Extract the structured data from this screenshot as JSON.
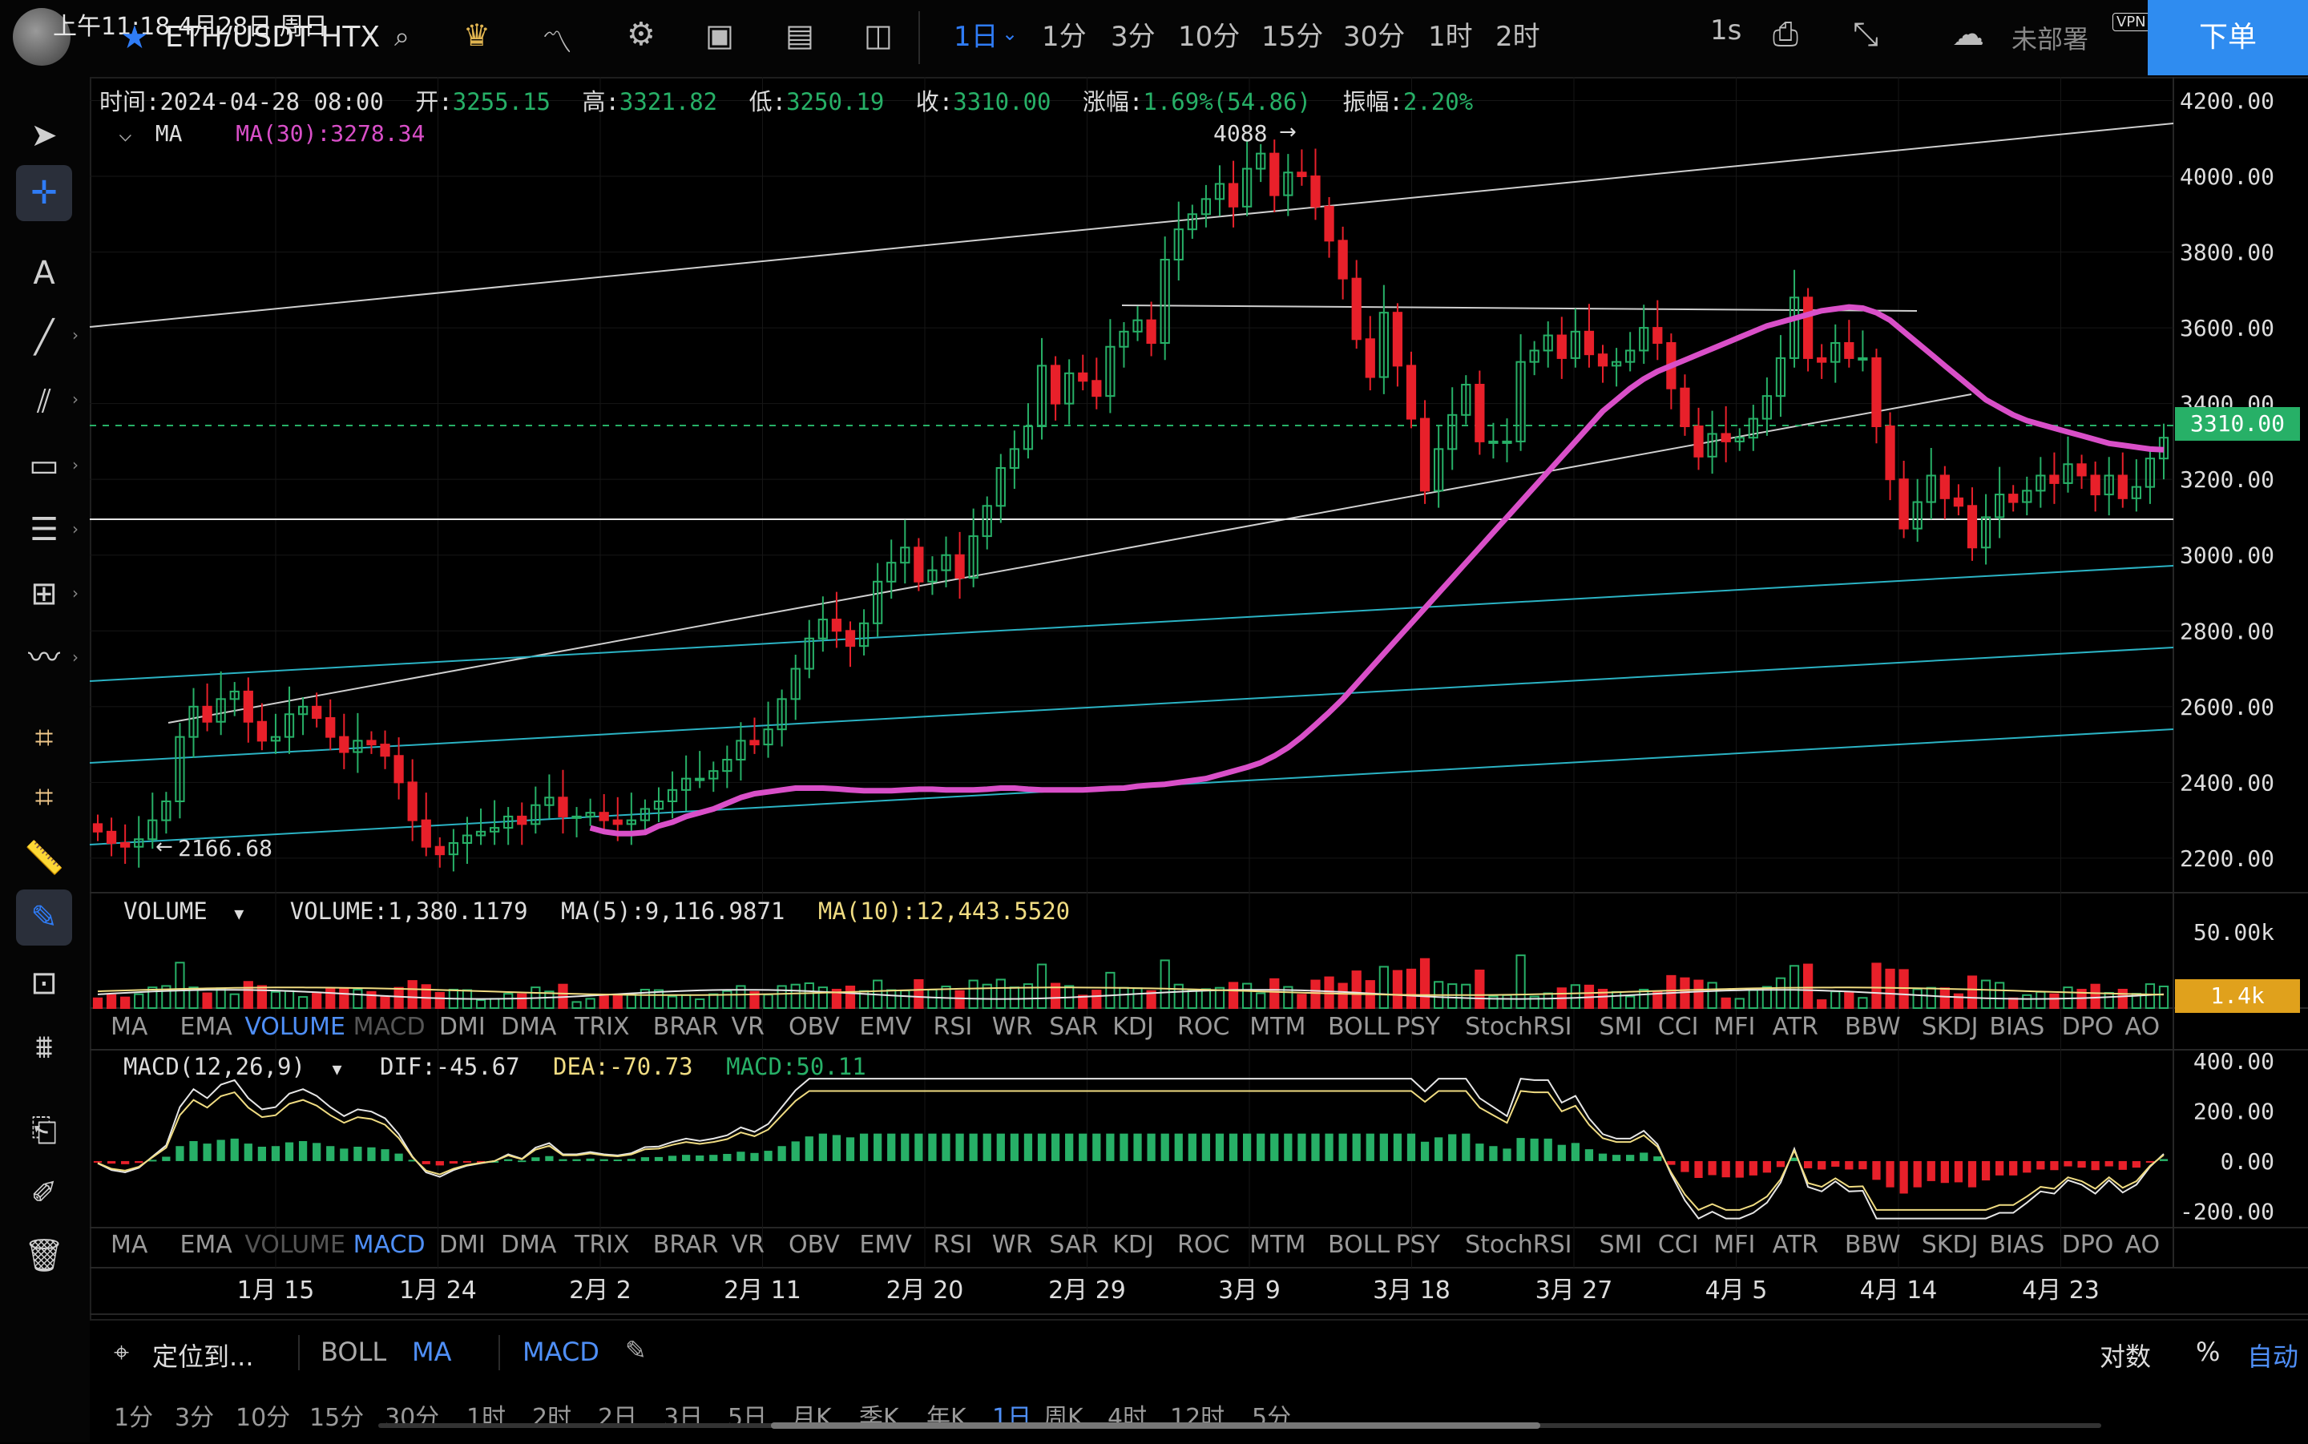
{
  "status": {
    "time": "上午11:18 4月28日 周日",
    "not_all": "未部署"
  },
  "header": {
    "symbol": "ETH/USDT HTX",
    "timeframes": [
      "1日",
      "1分",
      "3分",
      "10分",
      "15分",
      "30分",
      "1时",
      "2时"
    ],
    "active_timeframe": "1日",
    "interval_1s": "1s",
    "order_button": "下单"
  },
  "info": {
    "time_label": "时间:",
    "time": "2024-04-28 08:00",
    "open_label": "开:",
    "open": "3255.15",
    "high_label": "高:",
    "high": "3321.82",
    "low_label": "低:",
    "low": "3250.19",
    "close_label": "收:",
    "close": "3310.00",
    "change_label": "涨幅:",
    "change": "1.69%(54.86)",
    "amp_label": "振幅:",
    "amp": "2.20%",
    "ma_toggle": "MA",
    "ma30": "MA(30):3278.34"
  },
  "annotations": {
    "max_label": "4088",
    "min_label": "2166.68",
    "last_price": "3310.00",
    "vol_tag": "1.4k"
  },
  "volume_header": {
    "name": "VOLUME",
    "volume": "VOLUME:1,380.1179",
    "ma5": "MA(5):9,116.9871",
    "ma10": "MA(10):12,443.5520"
  },
  "macd_header": {
    "name": "MACD(12,26,9)",
    "dif": "DIF:-45.67",
    "dea": "DEA:-70.73",
    "macd": "MACD:50.11"
  },
  "indicator_tabs": [
    "MA",
    "EMA",
    "VOLUME",
    "MACD",
    "DMI",
    "DMA",
    "TRIX",
    "BRAR",
    "VR",
    "OBV",
    "EMV",
    "RSI",
    "WR",
    "SAR",
    "KDJ",
    "ROC",
    "MTM",
    "BOLL",
    "PSY",
    "StochRSI",
    "SMI",
    "CCI",
    "MFI",
    "ATR",
    "BBW",
    "SKDJ",
    "BIAS",
    "DPO",
    "AO"
  ],
  "bottom": {
    "locate": "定位到...",
    "overlay_tabs": [
      "BOLL",
      "MA"
    ],
    "sub_tab": "MACD",
    "log": "对数",
    "percent": "%",
    "auto": "自动",
    "periods": [
      "1分",
      "3分",
      "10分",
      "15分",
      "30分",
      "1时",
      "2时",
      "2日",
      "3日",
      "5日",
      "月K",
      "季K",
      "年K",
      "1日",
      "周K",
      "4时",
      "12时",
      "5分"
    ],
    "active_period": "1日"
  },
  "colors": {
    "up": "#27b067",
    "down": "#e8202a",
    "ma30": "#d94fc8",
    "accent": "#2f7cf6",
    "ma10": "#f0dc82"
  },
  "chart_data": {
    "type": "candlestick",
    "price_axis": {
      "ticks": [
        "4200.00",
        "4000.00",
        "3800.00",
        "3600.00",
        "3400.00",
        "3200.00",
        "3000.00",
        "2800.00",
        "2600.00",
        "2400.00",
        "2200.00"
      ],
      "ylim": [
        2130,
        4220
      ]
    },
    "date_axis": {
      "ticks": [
        "1月 15",
        "1月 24",
        "2月 2",
        "2月 11",
        "2月 20",
        "2月 29",
        "3月 9",
        "3月 18",
        "3月 27",
        "4月 5",
        "4月 14",
        "4月 23"
      ]
    },
    "volume_axis": {
      "ticks": [
        "50.00k"
      ],
      "ylim": [
        0,
        62000
      ]
    },
    "macd_axis": {
      "ticks": [
        "400.00",
        "200.00",
        "0.00",
        "-200.00"
      ],
      "ylim": [
        -260,
        420
      ]
    },
    "series": [
      {
        "name": "ETH/USDT",
        "close": [
          2270,
          2240,
          2230,
          2250,
          2300,
          2350,
          2520,
          2600,
          2560,
          2620,
          2640,
          2560,
          2510,
          2520,
          2580,
          2600,
          2570,
          2520,
          2480,
          2510,
          2500,
          2470,
          2400,
          2300,
          2230,
          2210,
          2240,
          2260,
          2270,
          2280,
          2310,
          2290,
          2340,
          2360,
          2310,
          2310,
          2320,
          2300,
          2290,
          2300,
          2330,
          2350,
          2380,
          2410,
          2410,
          2430,
          2460,
          2510,
          2500,
          2540,
          2620,
          2700,
          2780,
          2830,
          2800,
          2760,
          2820,
          2930,
          2980,
          3020,
          2930,
          2960,
          3000,
          2940,
          3050,
          3130,
          3230,
          3280,
          3340,
          3500,
          3400,
          3480,
          3460,
          3420,
          3550,
          3590,
          3620,
          3560,
          3780,
          3860,
          3900,
          3940,
          3980,
          3920,
          4020,
          4060,
          3950,
          4010,
          4000,
          3920,
          3830,
          3730,
          3570,
          3470,
          3640,
          3500,
          3360,
          3170,
          3280,
          3370,
          3450,
          3300,
          3300,
          3300,
          3510,
          3540,
          3580,
          3520,
          3590,
          3530,
          3500,
          3510,
          3540,
          3600,
          3560,
          3440,
          3340,
          3260,
          3320,
          3300,
          3310,
          3360,
          3420,
          3520,
          3680,
          3520,
          3510,
          3560,
          3520,
          3520,
          3340,
          3200,
          3070,
          3140,
          3210,
          3150,
          3130,
          3020,
          3100,
          3160,
          3140,
          3170,
          3210,
          3190,
          3240,
          3210,
          3160,
          3210,
          3150,
          3180,
          3255,
          3310
        ]
      },
      {
        "name": "MA(30)",
        "values": [
          2280,
          2270,
          2265,
          2265,
          2268,
          2285,
          2295,
          2310,
          2320,
          2330,
          2345,
          2360,
          2370,
          2375,
          2380,
          2385,
          2385,
          2385,
          2383,
          2380,
          2378,
          2378,
          2378,
          2380,
          2382,
          2382,
          2380,
          2380,
          2380,
          2382,
          2385,
          2385,
          2382,
          2380,
          2380,
          2380,
          2380,
          2382,
          2384,
          2385,
          2390,
          2393,
          2395,
          2400,
          2405,
          2410,
          2420,
          2430,
          2440,
          2452,
          2470,
          2492,
          2520,
          2552,
          2585,
          2620,
          2660,
          2700,
          2740,
          2780,
          2820,
          2860,
          2900,
          2940,
          2980,
          3020,
          3060,
          3100,
          3140,
          3180,
          3220,
          3260,
          3300,
          3340,
          3380,
          3410,
          3440,
          3465,
          3485,
          3500,
          3515,
          3530,
          3545,
          3560,
          3575,
          3590,
          3605,
          3615,
          3625,
          3635,
          3645,
          3650,
          3655,
          3652,
          3640,
          3620,
          3590,
          3560,
          3530,
          3500,
          3470,
          3440,
          3410,
          3390,
          3370,
          3355,
          3345,
          3335,
          3325,
          3315,
          3305,
          3295,
          3290,
          3285,
          3280,
          3278
        ]
      }
    ]
  }
}
